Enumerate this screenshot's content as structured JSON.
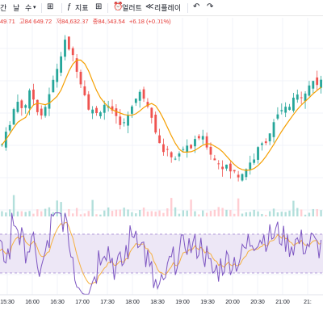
{
  "toolbar": {
    "interval_label": "간",
    "candle_label": "날",
    "add_label": "수",
    "indicator_label": "지표",
    "alert_label": "얼러트",
    "replay_label": "리플레이",
    "colors": {
      "text": "#131722",
      "separator": "#e0e3eb"
    }
  },
  "legend": {
    "open": "49.71",
    "high": "고84,649.72",
    "low": "저84,632.37",
    "close": "종84,643.54",
    "change": "+6.18 (+0.01%)",
    "color": "#e53935"
  },
  "chart_data": {
    "type": "candlestick",
    "x_ticks": [
      "15:30",
      "16:00",
      "16:30",
      "17:00",
      "17:30",
      "18:00",
      "18:30",
      "19:00",
      "19:30",
      "20:00",
      "20:30",
      "21:00",
      "21:"
    ],
    "close_series": [
      100,
      108,
      118,
      128,
      134,
      130,
      132,
      140,
      136,
      128,
      124,
      130,
      138,
      150,
      160,
      170,
      180,
      176,
      168,
      160,
      150,
      140,
      130,
      126,
      124,
      128,
      132,
      128,
      124,
      120,
      118,
      116,
      124,
      132,
      136,
      140,
      138,
      132,
      124,
      112,
      100,
      96,
      94,
      92,
      90,
      92,
      96,
      100,
      98,
      102,
      106,
      104,
      100,
      94,
      88,
      86,
      84,
      82,
      80,
      78,
      76,
      78,
      82,
      86,
      90,
      96,
      100,
      104,
      110,
      116,
      122,
      126,
      128,
      130,
      134,
      138,
      140,
      142,
      146,
      150,
      148,
      152
    ],
    "ma_color": "#f59f00",
    "up_color": "#26a69a",
    "down_color": "#ef5350",
    "oscillator": {
      "band_upper": 70,
      "band_lower": 30,
      "line_color": "#7e57c2",
      "signal_color": "#f5b041",
      "band_fill": "#ede7f6"
    },
    "grid": true
  }
}
